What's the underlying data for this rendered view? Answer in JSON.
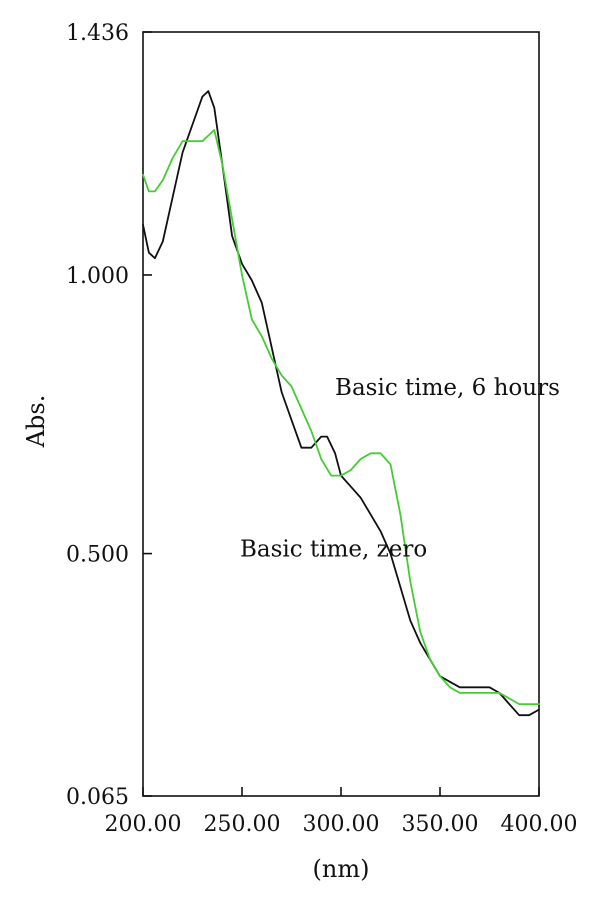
{
  "chart_data": {
    "type": "line",
    "title": "",
    "xlabel": "(nm)",
    "ylabel": "Abs.",
    "xlim": [
      200,
      400
    ],
    "ylim": [
      0.065,
      1.436
    ],
    "grid": false,
    "legend": "none",
    "x_ticks": [
      {
        "value": 200,
        "label": "200.00"
      },
      {
        "value": 250,
        "label": "250.00"
      },
      {
        "value": 300,
        "label": "300.00"
      },
      {
        "value": 350,
        "label": "350.00"
      },
      {
        "value": 400,
        "label": "400.00"
      }
    ],
    "y_ticks": [
      {
        "value": 0.065,
        "label": "0.065"
      },
      {
        "value": 0.5,
        "label": "0.500"
      },
      {
        "value": 1.0,
        "label": "1.000"
      },
      {
        "value": 1.436,
        "label": "1.436"
      }
    ],
    "series": [
      {
        "color": "#111111",
        "points": [
          [
            200,
            1.09
          ],
          [
            203,
            1.04
          ],
          [
            206,
            1.03
          ],
          [
            210,
            1.06
          ],
          [
            215,
            1.14
          ],
          [
            220,
            1.22
          ],
          [
            225,
            1.27
          ],
          [
            230,
            1.32
          ],
          [
            233,
            1.33
          ],
          [
            236,
            1.3
          ],
          [
            240,
            1.2
          ],
          [
            245,
            1.07
          ],
          [
            250,
            1.02
          ],
          [
            255,
            0.99
          ],
          [
            260,
            0.95
          ],
          [
            265,
            0.87
          ],
          [
            270,
            0.79
          ],
          [
            275,
            0.74
          ],
          [
            280,
            0.69
          ],
          [
            285,
            0.69
          ],
          [
            290,
            0.71
          ],
          [
            293,
            0.71
          ],
          [
            297,
            0.68
          ],
          [
            300,
            0.64
          ],
          [
            305,
            0.62
          ],
          [
            310,
            0.6
          ],
          [
            315,
            0.57
          ],
          [
            320,
            0.54
          ],
          [
            325,
            0.5
          ],
          [
            330,
            0.44
          ],
          [
            335,
            0.38
          ],
          [
            340,
            0.34
          ],
          [
            345,
            0.31
          ],
          [
            350,
            0.28
          ],
          [
            355,
            0.27
          ],
          [
            360,
            0.26
          ],
          [
            365,
            0.26
          ],
          [
            370,
            0.26
          ],
          [
            375,
            0.26
          ],
          [
            380,
            0.25
          ],
          [
            385,
            0.23
          ],
          [
            390,
            0.21
          ],
          [
            395,
            0.21
          ],
          [
            400,
            0.22
          ]
        ]
      },
      {
        "color": "#44cc33",
        "points": [
          [
            200,
            1.18
          ],
          [
            203,
            1.15
          ],
          [
            206,
            1.15
          ],
          [
            210,
            1.17
          ],
          [
            215,
            1.21
          ],
          [
            220,
            1.24
          ],
          [
            225,
            1.24
          ],
          [
            230,
            1.24
          ],
          [
            233,
            1.25
          ],
          [
            236,
            1.26
          ],
          [
            240,
            1.2
          ],
          [
            245,
            1.1
          ],
          [
            250,
            1.0
          ],
          [
            255,
            0.92
          ],
          [
            260,
            0.89
          ],
          [
            265,
            0.85
          ],
          [
            270,
            0.82
          ],
          [
            275,
            0.8
          ],
          [
            280,
            0.76
          ],
          [
            285,
            0.72
          ],
          [
            290,
            0.67
          ],
          [
            295,
            0.64
          ],
          [
            300,
            0.64
          ],
          [
            305,
            0.65
          ],
          [
            310,
            0.67
          ],
          [
            315,
            0.68
          ],
          [
            320,
            0.68
          ],
          [
            325,
            0.66
          ],
          [
            330,
            0.57
          ],
          [
            335,
            0.45
          ],
          [
            340,
            0.36
          ],
          [
            345,
            0.31
          ],
          [
            350,
            0.28
          ],
          [
            355,
            0.26
          ],
          [
            360,
            0.25
          ],
          [
            365,
            0.25
          ],
          [
            370,
            0.25
          ],
          [
            375,
            0.25
          ],
          [
            380,
            0.25
          ],
          [
            385,
            0.24
          ],
          [
            390,
            0.23
          ],
          [
            395,
            0.23
          ],
          [
            400,
            0.23
          ]
        ]
      }
    ],
    "annotations": [
      {
        "text": "Basic time, 6 hours",
        "x": 297,
        "y": 0.785
      },
      {
        "text": "Basic time, zero",
        "x": 249,
        "y": 0.495
      }
    ]
  }
}
